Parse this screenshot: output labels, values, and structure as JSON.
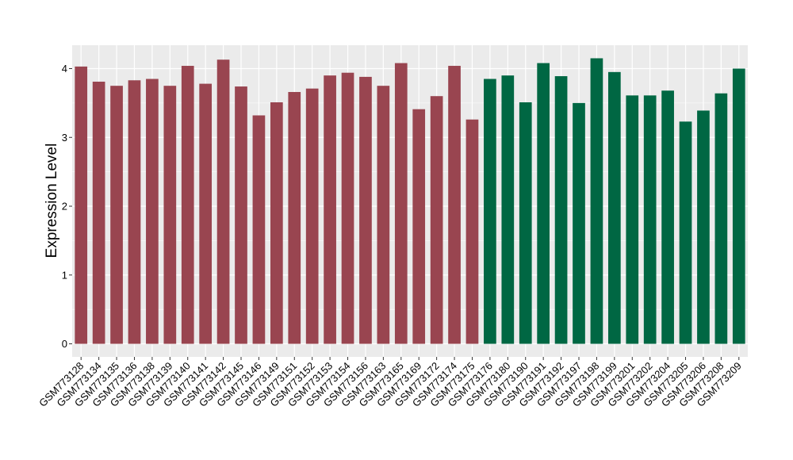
{
  "chart_data": {
    "type": "bar",
    "title": "",
    "xlabel": "",
    "ylabel": "Expression Level",
    "ylim": [
      -0.19,
      4.34
    ],
    "yticks": [
      0,
      1,
      2,
      3,
      4
    ],
    "grid": true,
    "legend": "none",
    "categories": [
      "GSM773128",
      "GSM773134",
      "GSM773135",
      "GSM773136",
      "GSM773138",
      "GSM773139",
      "GSM773140",
      "GSM773141",
      "GSM773142",
      "GSM773145",
      "GSM773146",
      "GSM773149",
      "GSM773151",
      "GSM773152",
      "GSM773153",
      "GSM773154",
      "GSM773156",
      "GSM773163",
      "GSM773165",
      "GSM773169",
      "GSM773172",
      "GSM773174",
      "GSM773175",
      "GSM773176",
      "GSM773180",
      "GSM773190",
      "GSM773191",
      "GSM773192",
      "GSM773197",
      "GSM773198",
      "GSM773199",
      "GSM773201",
      "GSM773202",
      "GSM773204",
      "GSM773205",
      "GSM773206",
      "GSM773208",
      "GSM773209"
    ],
    "values": [
      4.03,
      3.81,
      3.75,
      3.83,
      3.85,
      3.75,
      4.04,
      3.78,
      4.13,
      3.74,
      3.32,
      3.51,
      3.66,
      3.71,
      3.9,
      3.94,
      3.88,
      3.75,
      4.08,
      3.41,
      3.6,
      4.04,
      3.26,
      3.85,
      3.9,
      3.51,
      4.08,
      3.89,
      3.5,
      4.15,
      3.95,
      3.61,
      3.61,
      3.68,
      3.23,
      3.39,
      3.64,
      4.0
    ],
    "groups": [
      0,
      0,
      0,
      0,
      0,
      0,
      0,
      0,
      0,
      0,
      0,
      0,
      0,
      0,
      0,
      0,
      0,
      0,
      0,
      0,
      0,
      0,
      0,
      1,
      1,
      1,
      1,
      1,
      1,
      1,
      1,
      1,
      1,
      1,
      1,
      1,
      1,
      1
    ],
    "group_colors": [
      "#994550",
      "#006743"
    ],
    "panel_background": "#ebebeb",
    "grid_color": "#ffffff"
  }
}
